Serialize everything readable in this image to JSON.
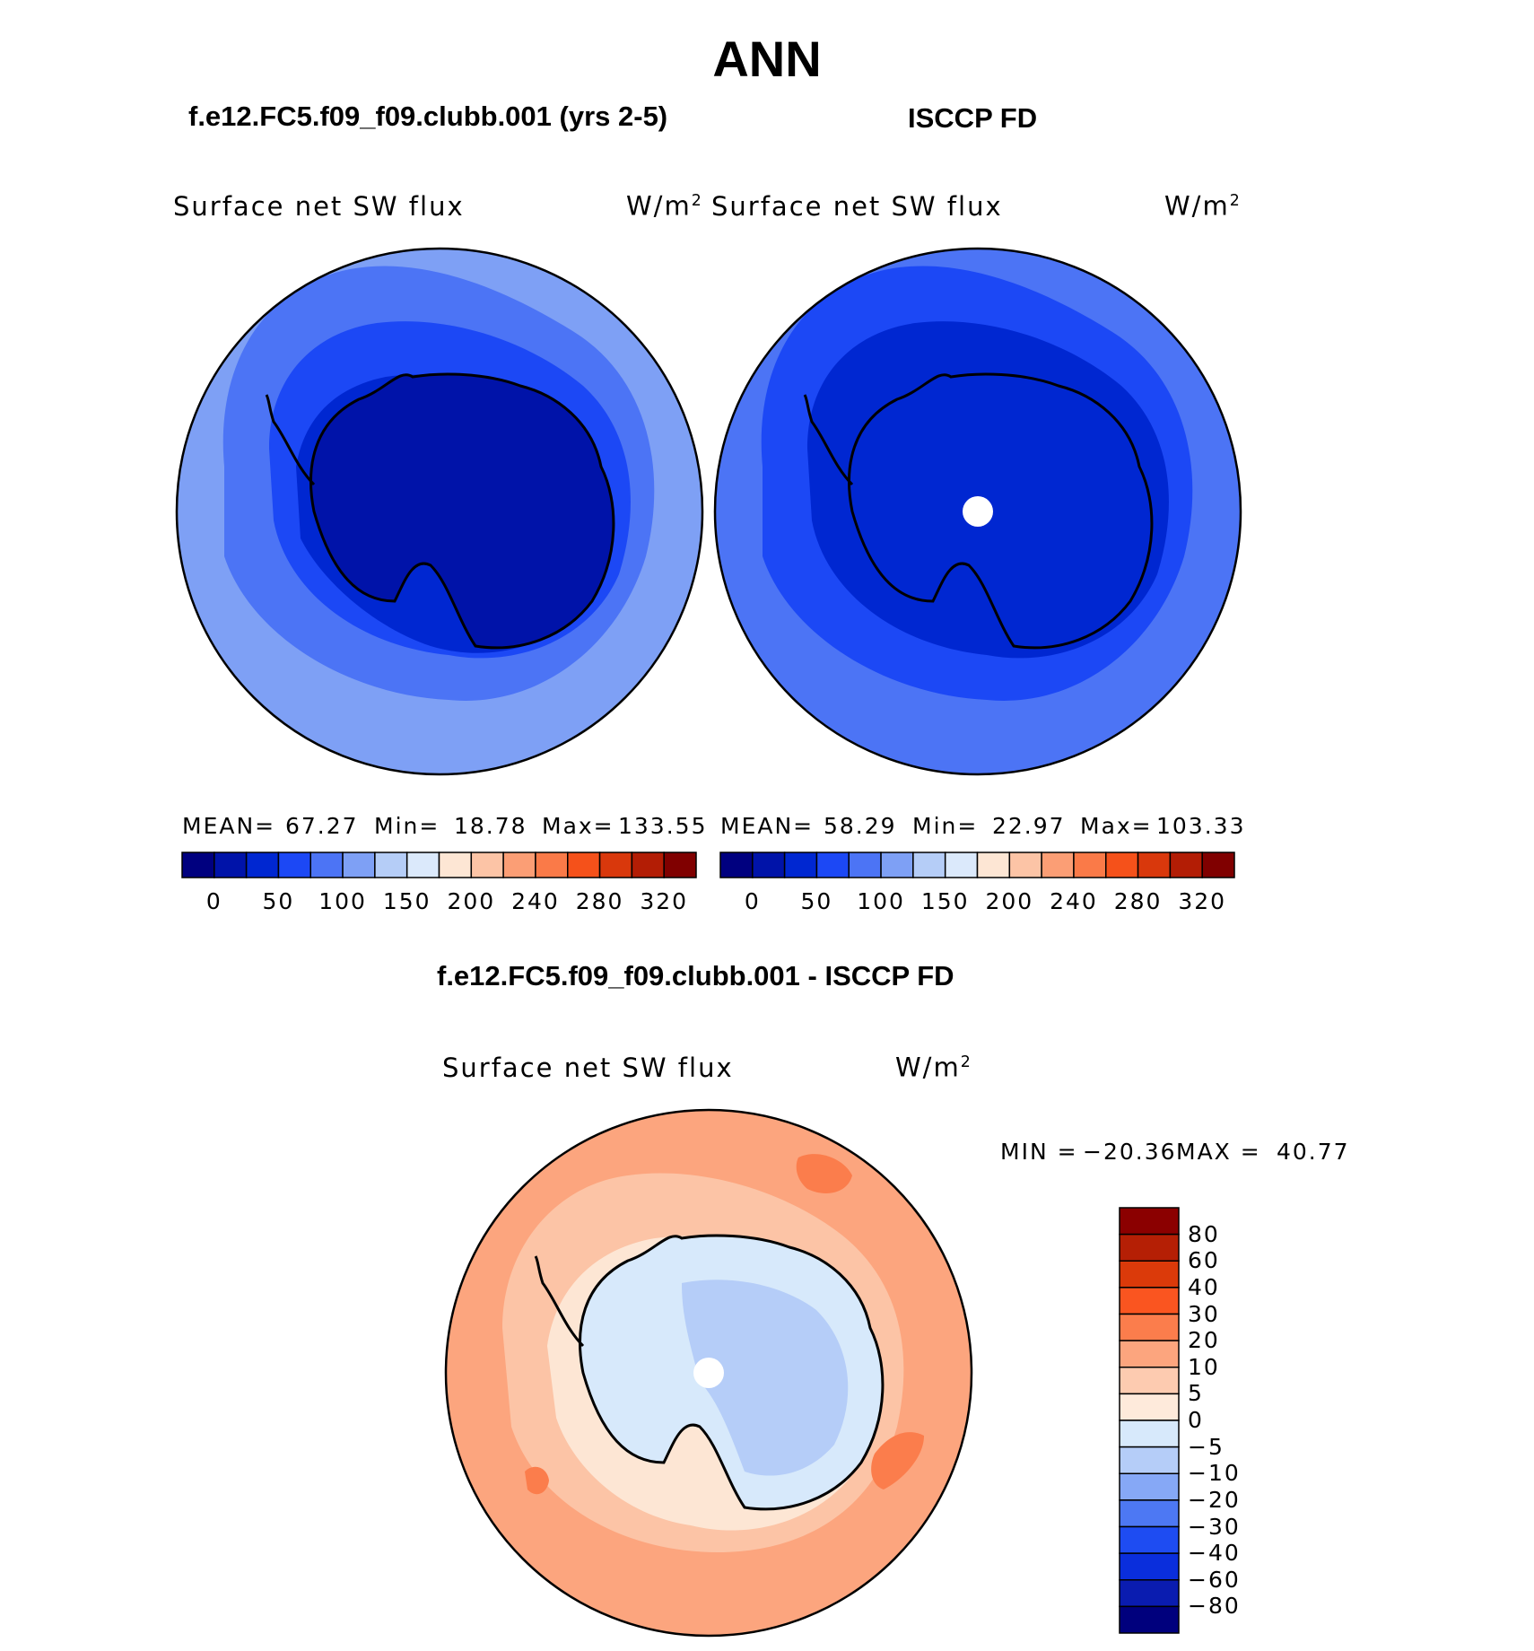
{
  "title": "ANN",
  "panels": {
    "model": {
      "title": "f.e12.FC5.f09_f09.clubb.001 (yrs 2-5)",
      "variable": "Surface net SW flux",
      "units": "W/m",
      "units_exp": "2",
      "mean_label": "MEAN=",
      "mean": "67.27",
      "min_label": "Min=",
      "min": "18.78",
      "max_label": "Max=",
      "max": "133.55"
    },
    "obs": {
      "title": "ISCCP FD",
      "variable": "Surface net SW flux",
      "units": "W/m",
      "units_exp": "2",
      "mean_label": "MEAN=",
      "mean": "58.29",
      "min_label": "Min=",
      "min": "22.97",
      "max_label": "Max=",
      "max": "103.33"
    },
    "diff": {
      "title": "f.e12.FC5.f09_f09.clubb.001 - ISCCP FD",
      "variable": "Surface net SW flux",
      "units": "W/m",
      "units_exp": "2",
      "min_label": "MIN =",
      "min": "−20.36",
      "max_label": "MAX =",
      "max": "40.77"
    }
  },
  "abs_colorbar": {
    "ticks": [
      "0",
      "50",
      "100",
      "150",
      "200",
      "240",
      "280",
      "320"
    ],
    "colors": [
      "#00007f",
      "#0013a9",
      "#0027d1",
      "#1c48f5",
      "#4c74f5",
      "#7ea0f5",
      "#b5cdf7",
      "#dbe9fb",
      "#fde6d4",
      "#fcc4a6",
      "#fb9e75",
      "#fa7a48",
      "#f5511a",
      "#d9380c",
      "#b31d05",
      "#800000"
    ]
  },
  "diff_colorbar": {
    "ticks": [
      "80",
      "60",
      "40",
      "30",
      "20",
      "10",
      "5",
      "0",
      "−5",
      "−10",
      "−20",
      "−30",
      "−40",
      "−60",
      "−80"
    ],
    "colors": [
      "#8b0000",
      "#b51f05",
      "#db3a0a",
      "#fa5520",
      "#fb7d4c",
      "#fca57e",
      "#fdcbb0",
      "#feeadb",
      "#d7e9fb",
      "#b5cdf8",
      "#86a8f6",
      "#4d78f3",
      "#1e4cf2",
      "#0a2edc",
      "#0a1cb0",
      "#00007d"
    ]
  },
  "maps": {
    "model": {
      "ocean_outer": "#7ea0f5",
      "ocean_mid": "#4c74f5",
      "ocean_inner": "#1c48f5",
      "coast": "#0027d1",
      "land": "#0013a9"
    },
    "obs": {
      "ocean_outer": "#4c74f5",
      "ocean_mid": "#1c48f5",
      "ocean_inner": "#0027d1",
      "coast": "#0027d1",
      "land": "#0027d1"
    },
    "diff": {
      "ocean_outer": "#fca57e",
      "ocean_mid": "#fcc4a6",
      "ocean_inner": "#fde6d4",
      "coast": "#fde6d4",
      "land": "#d7e9fb"
    }
  }
}
